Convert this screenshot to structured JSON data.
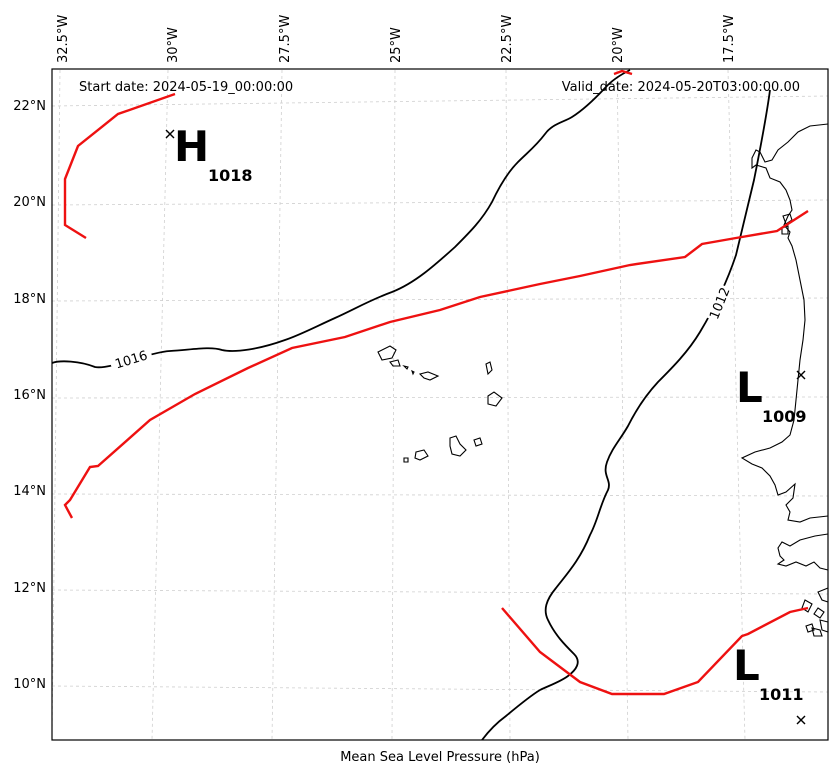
{
  "map": {
    "start_date": "Start date: 2024-05-19_00:00:00",
    "valid_date": "Valid_date: 2024-05-20T03:00:00.00",
    "xlabel": "Mean Sea Level Pressure (hPa)",
    "lon_ticks": [
      "32.5°W",
      "30°W",
      "27.5°W",
      "25°W",
      "22.5°W",
      "20°W",
      "17.5°W"
    ],
    "lat_ticks": [
      "22°N",
      "20°N",
      "18°N",
      "16°N",
      "14°N",
      "12°N",
      "10°N"
    ],
    "isobar_labels": [
      "1016",
      "1012"
    ],
    "pressure_centers": [
      {
        "type": "H",
        "value": "1018"
      },
      {
        "type": "L",
        "value": "1009"
      },
      {
        "type": "L",
        "value": "1011"
      }
    ],
    "colors": {
      "isobar": "#000000",
      "front": "#ee1111",
      "grid": "#cfcfcf",
      "coast": "#000000"
    }
  }
}
